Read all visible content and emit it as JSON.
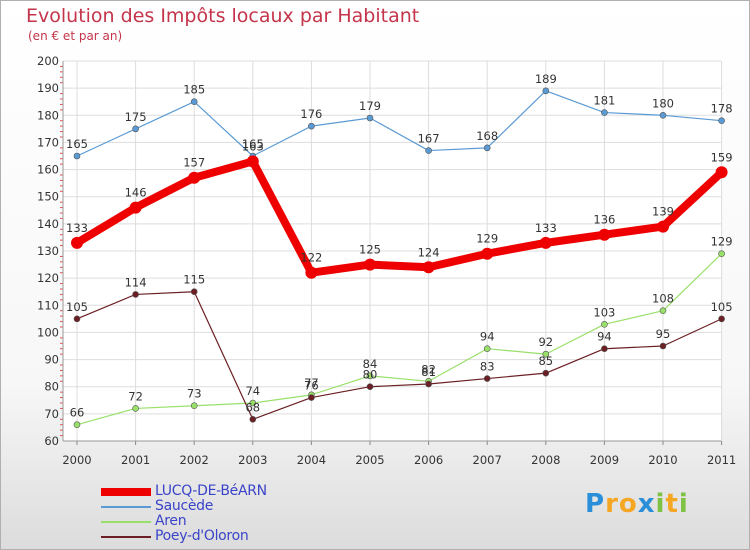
{
  "chart_data": {
    "type": "line",
    "title": "Evolution des Impôts locaux par Habitant",
    "subtitle": "(en € et par an)",
    "xlabel": "",
    "ylabel": "",
    "ylim": [
      60,
      200
    ],
    "yticks": [
      60,
      70,
      80,
      90,
      100,
      110,
      120,
      130,
      140,
      150,
      160,
      170,
      180,
      190,
      200
    ],
    "categories": [
      "2000",
      "2001",
      "2002",
      "2003",
      "2004",
      "2005",
      "2006",
      "2007",
      "2008",
      "2009",
      "2010",
      "2011"
    ],
    "grid": true,
    "legend_position": "bottom-left",
    "series": [
      {
        "name": "LUCQ-DE-BéARN",
        "color": "#ee0000",
        "style": "thick",
        "values": [
          133,
          146,
          157,
          163,
          122,
          125,
          124,
          129,
          133,
          136,
          139,
          159
        ]
      },
      {
        "name": "Saucède",
        "color": "#5b9bd5",
        "style": "thin",
        "values": [
          165,
          175,
          185,
          165,
          176,
          179,
          167,
          168,
          189,
          181,
          180,
          178
        ]
      },
      {
        "name": "Aren",
        "color": "#99e06a",
        "style": "thin",
        "values": [
          66,
          72,
          73,
          74,
          77,
          84,
          82,
          94,
          92,
          103,
          108,
          129
        ]
      },
      {
        "name": "Poey-d'Oloron",
        "color": "#6b1f24",
        "style": "thin",
        "values": [
          105,
          114,
          115,
          68,
          76,
          80,
          81,
          83,
          85,
          94,
          95,
          105
        ]
      }
    ]
  },
  "logo": {
    "letters": [
      "P",
      "r",
      "o",
      "x",
      "i",
      "t",
      "i"
    ],
    "colors": [
      "#2a8fd8",
      "#f5a623",
      "#f5a623",
      "#2a8fd8",
      "#7dc242",
      "#f5a623",
      "#7dc242"
    ]
  }
}
